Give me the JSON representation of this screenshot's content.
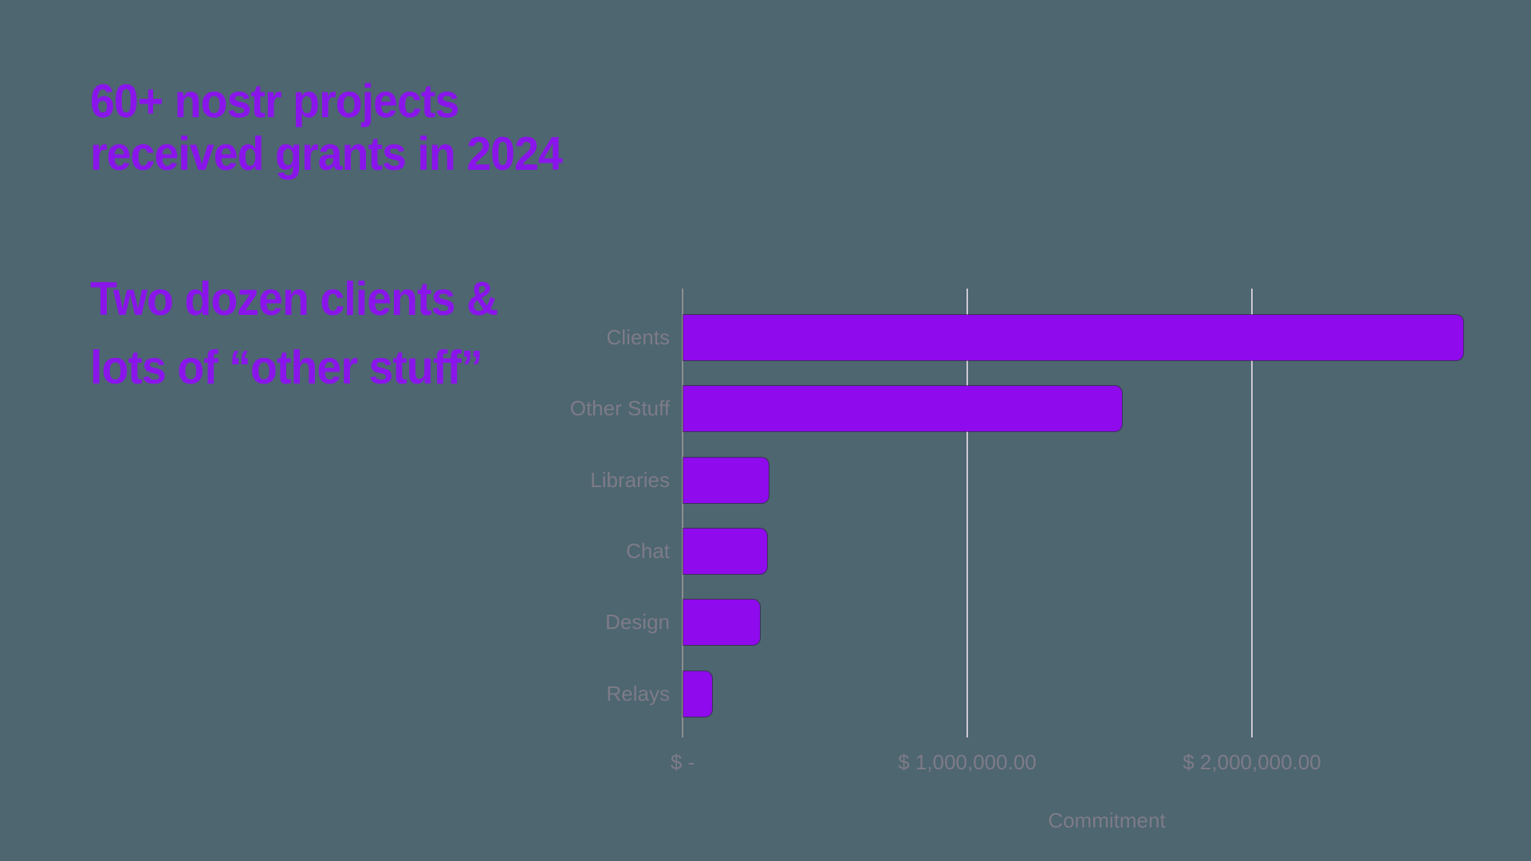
{
  "slide": {
    "background_color": "#4D6670",
    "headline": {
      "lines": [
        "60+ nostr projects",
        "received grants in 2024"
      ],
      "color": "#8A15EB"
    },
    "subhead": {
      "lines": [
        "Two dozen clients &",
        "lots of “other stuff”"
      ],
      "color": "#8A15EB"
    }
  },
  "chart_data": {
    "type": "bar",
    "orientation": "horizontal",
    "title": "",
    "categories": [
      "Clients",
      "Other Stuff",
      "Libraries",
      "Chat",
      "Design",
      "Relays"
    ],
    "values": [
      2740000,
      1540000,
      300000,
      295000,
      270000,
      100000
    ],
    "values_unit": "USD",
    "xlabel": "Commitment",
    "ylabel": "",
    "xlim": [
      0,
      2830000
    ],
    "x_ticks": [
      {
        "value": 0,
        "label": "$ -"
      },
      {
        "value": 1000000,
        "label": "$ 1,000,000.00"
      },
      {
        "value": 2000000,
        "label": "$ 2,000,000.00"
      }
    ],
    "grid": true,
    "legend": false,
    "bar_color": "#8F0AEC",
    "axis_line_color": "#8E8D92",
    "gridline_color": "#CDC8D5",
    "label_color": "#7E7B88"
  }
}
